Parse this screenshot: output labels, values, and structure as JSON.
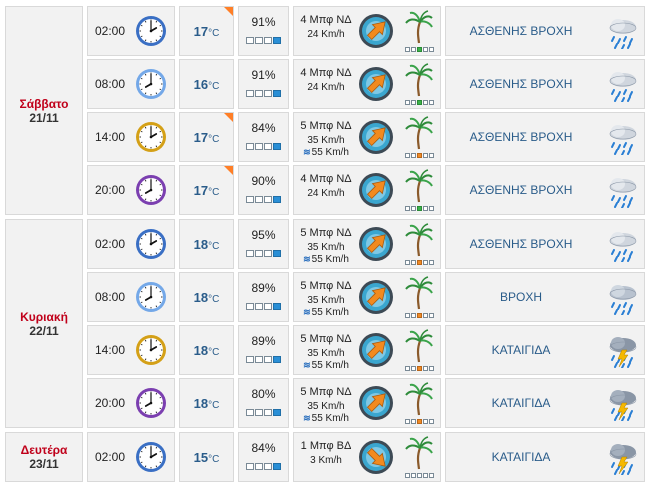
{
  "days": [
    {
      "name": "Σάββατο",
      "date": "21/11",
      "rows": [
        {
          "time": "02:00",
          "temp": "17",
          "unit": "°C",
          "hum": "91%",
          "hum_fill": 4,
          "wind_beaufort": "4 Μπφ ΝΔ",
          "wind_speed": "24 Km/h",
          "gust": "",
          "desc": "ΑΣΘΕΝΗΣ ΒΡΟΧΗ",
          "icon": "light-rain-icon",
          "clock": "blue",
          "bft_color": "g",
          "bft_fill": 2,
          "corner": true
        },
        {
          "time": "08:00",
          "temp": "16",
          "unit": "°C",
          "hum": "91%",
          "hum_fill": 4,
          "wind_beaufort": "4 Μπφ ΝΔ",
          "wind_speed": "24 Km/h",
          "gust": "",
          "desc": "ΑΣΘΕΝΗΣ ΒΡΟΧΗ",
          "icon": "light-rain-icon",
          "clock": "lightblue",
          "bft_color": "g",
          "bft_fill": 2,
          "corner": false
        },
        {
          "time": "14:00",
          "temp": "17",
          "unit": "°C",
          "hum": "84%",
          "hum_fill": 4,
          "wind_beaufort": "5 Μπφ ΝΔ",
          "wind_speed": "35 Km/h",
          "gust": "55 Km/h",
          "desc": "ΑΣΘΕΝΗΣ ΒΡΟΧΗ",
          "icon": "light-rain-icon",
          "clock": "gold",
          "bft_color": "o",
          "bft_fill": 2,
          "corner": true
        },
        {
          "time": "20:00",
          "temp": "17",
          "unit": "°C",
          "hum": "90%",
          "hum_fill": 4,
          "wind_beaufort": "4 Μπφ ΝΔ",
          "wind_speed": "24 Km/h",
          "gust": "",
          "desc": "ΑΣΘΕΝΗΣ ΒΡΟΧΗ",
          "icon": "light-rain-icon",
          "clock": "purple",
          "bft_color": "g",
          "bft_fill": 2,
          "corner": true
        }
      ]
    },
    {
      "name": "Κυριακή",
      "date": "22/11",
      "rows": [
        {
          "time": "02:00",
          "temp": "18",
          "unit": "°C",
          "hum": "95%",
          "hum_fill": 4,
          "wind_beaufort": "5 Μπφ ΝΔ",
          "wind_speed": "35 Km/h",
          "gust": "55 Km/h",
          "desc": "ΑΣΘΕΝΗΣ ΒΡΟΧΗ",
          "icon": "light-rain-icon",
          "clock": "blue",
          "bft_color": "o",
          "bft_fill": 2,
          "corner": false
        },
        {
          "time": "08:00",
          "temp": "18",
          "unit": "°C",
          "hum": "89%",
          "hum_fill": 4,
          "wind_beaufort": "5 Μπφ ΝΔ",
          "wind_speed": "35 Km/h",
          "gust": "55 Km/h",
          "desc": "ΒΡΟΧΗ",
          "icon": "rain-icon",
          "clock": "lightblue",
          "bft_color": "o",
          "bft_fill": 2,
          "corner": false
        },
        {
          "time": "14:00",
          "temp": "18",
          "unit": "°C",
          "hum": "89%",
          "hum_fill": 4,
          "wind_beaufort": "5 Μπφ ΝΔ",
          "wind_speed": "35 Km/h",
          "gust": "55 Km/h",
          "desc": "ΚΑΤΑΙΓΙΔΑ",
          "icon": "thunderstorm-icon",
          "clock": "gold",
          "bft_color": "o",
          "bft_fill": 2,
          "corner": false
        },
        {
          "time": "20:00",
          "temp": "18",
          "unit": "°C",
          "hum": "80%",
          "hum_fill": 4,
          "wind_beaufort": "5 Μπφ ΝΔ",
          "wind_speed": "35 Km/h",
          "gust": "55 Km/h",
          "desc": "ΚΑΤΑΙΓΙΔΑ",
          "icon": "thunderstorm-icon",
          "clock": "purple",
          "bft_color": "o",
          "bft_fill": 2,
          "corner": false
        }
      ]
    },
    {
      "name": "Δευτέρα",
      "date": "23/11",
      "rows": [
        {
          "time": "02:00",
          "temp": "15",
          "unit": "°C",
          "hum": "84%",
          "hum_fill": 4,
          "wind_beaufort": "1 Μπφ ΒΔ",
          "wind_speed": "3 Km/h",
          "gust": "",
          "desc": "ΚΑΤΑΙΓΙΔΑ",
          "icon": "thunderstorm-icon",
          "clock": "blue",
          "bft_color": "none",
          "bft_fill": 0,
          "corner": false
        }
      ]
    }
  ],
  "colors": {
    "clock_blue": "#3a6fc4",
    "clock_lightblue": "#74a8e8",
    "clock_gold": "#d4a017",
    "clock_purple": "#7b3fb0",
    "temp": "#2a5c8a",
    "day": "#c0001a",
    "corner": "#ff7f27"
  }
}
